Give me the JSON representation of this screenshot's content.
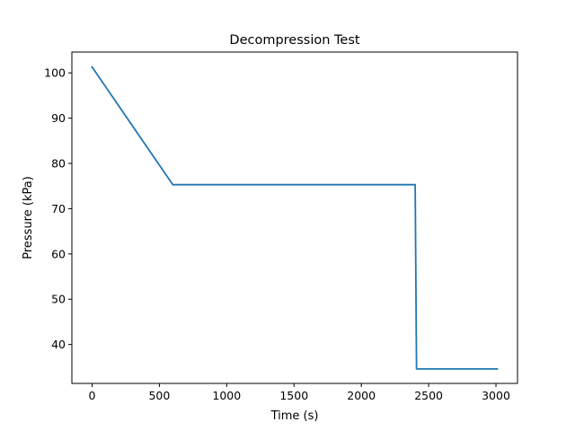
{
  "chart_data": {
    "type": "line",
    "title": "Decompression Test",
    "xlabel": "Time (s)",
    "ylabel": "Pressure (kPa)",
    "xlim": [
      -150,
      3160
    ],
    "ylim": [
      31.4,
      104.6
    ],
    "xticks": [
      {
        "value": 0,
        "label": "0"
      },
      {
        "value": 500,
        "label": "500"
      },
      {
        "value": 1000,
        "label": "1000"
      },
      {
        "value": 1500,
        "label": "1500"
      },
      {
        "value": 2000,
        "label": "2000"
      },
      {
        "value": 2500,
        "label": "2500"
      },
      {
        "value": 3000,
        "label": "3000"
      }
    ],
    "yticks": [
      {
        "value": 40,
        "label": "40"
      },
      {
        "value": 50,
        "label": "50"
      },
      {
        "value": 60,
        "label": "60"
      },
      {
        "value": 70,
        "label": "70"
      },
      {
        "value": 80,
        "label": "80"
      },
      {
        "value": 90,
        "label": "90"
      },
      {
        "value": 100,
        "label": "100"
      }
    ],
    "grid": false,
    "series": [
      {
        "color": "#1f77b4",
        "x": [
          0,
          600,
          2400,
          2410,
          3010
        ],
        "y": [
          101.3,
          75.3,
          75.3,
          34.6,
          34.6
        ]
      }
    ]
  }
}
